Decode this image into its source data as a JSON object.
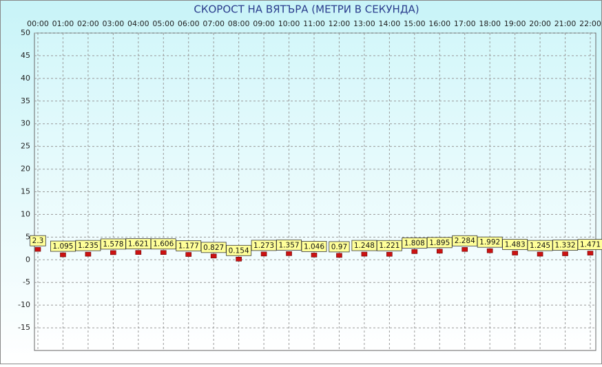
{
  "chart_data": {
    "type": "scatter",
    "title": "СКОРОСТ НА ВЯТЪРА (МЕТРИ В СЕКУНДА)",
    "categories": [
      "00:00",
      "01:00",
      "02:00",
      "03:00",
      "04:00",
      "05:00",
      "06:00",
      "07:00",
      "08:00",
      "09:00",
      "10:00",
      "11:00",
      "12:00",
      "13:00",
      "14:00",
      "15:00",
      "16:00",
      "17:00",
      "18:00",
      "19:00",
      "20:00",
      "21:00",
      "22:00"
    ],
    "values": [
      2.3,
      1.095,
      1.235,
      1.578,
      1.621,
      1.606,
      1.177,
      0.827,
      0.154,
      1.273,
      1.357,
      1.046,
      0.97,
      1.248,
      1.221,
      1.808,
      1.895,
      2.284,
      1.992,
      1.483,
      1.245,
      1.332,
      1.471
    ],
    "color": "#cc1111",
    "ylim": [
      -20,
      50
    ],
    "yticks": [
      -15,
      -10,
      -5,
      0,
      5,
      10,
      15,
      20,
      25,
      30,
      35,
      40,
      45,
      50
    ],
    "grid": true
  }
}
